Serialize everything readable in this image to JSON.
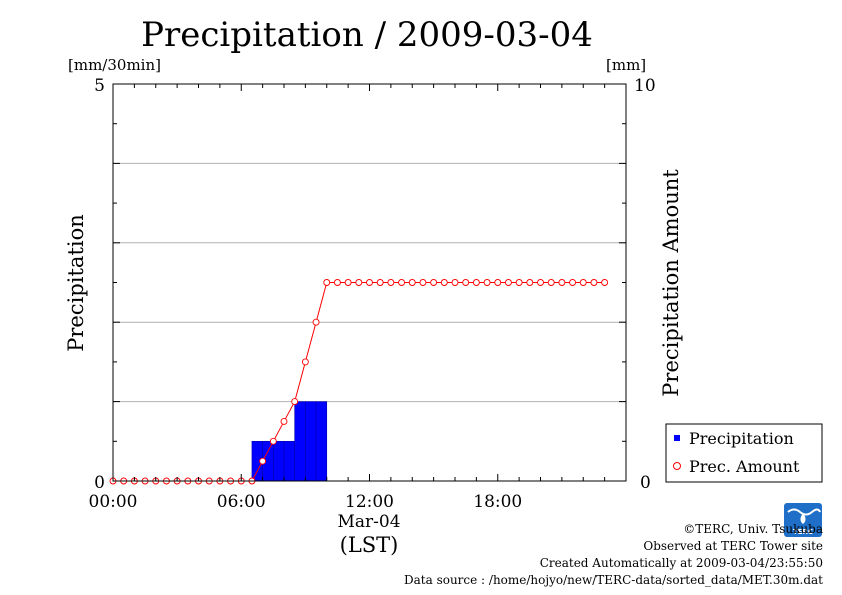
{
  "chart_data": {
    "type": "bar",
    "title": "Precipitation / 2009-03-04",
    "xlabel": "(LST)",
    "x_date_label": "Mar-04",
    "x_ticks": [
      "00:00",
      "06:00",
      "12:00",
      "18:00"
    ],
    "x_tick_hours": [
      0,
      6,
      12,
      18
    ],
    "xlim_hours": [
      0,
      24
    ],
    "bar_width_hours": 0.5,
    "y_left": {
      "label": "Precipitation",
      "unit": "[mm/30min]",
      "lim": [
        0,
        5
      ],
      "tick_labels": [
        "0",
        "5"
      ],
      "gridlines": [
        1,
        2,
        3,
        4
      ]
    },
    "y_right": {
      "label": "Precipitation Amount",
      "unit": "[mm]",
      "lim": [
        0,
        10
      ],
      "tick_labels": [
        "0",
        "10"
      ]
    },
    "series": [
      {
        "name": "Precipitation",
        "kind": "bar",
        "axis": "left",
        "color": "#0000ff",
        "x_hours": [
          6.5,
          7.0,
          7.5,
          8.0,
          8.5,
          9.0,
          9.5
        ],
        "values": [
          0.5,
          0.5,
          0.5,
          0.5,
          1.0,
          1.0,
          1.0
        ]
      },
      {
        "name": "Prec. Amount",
        "kind": "line",
        "axis": "right",
        "color": "#ff0000",
        "x_hours": [
          0.0,
          0.5,
          1.0,
          1.5,
          2.0,
          2.5,
          3.0,
          3.5,
          4.0,
          4.5,
          5.0,
          5.5,
          6.0,
          6.5,
          7.0,
          7.5,
          8.0,
          8.5,
          9.0,
          9.5,
          10.0,
          10.5,
          11.0,
          11.5,
          12.0,
          12.5,
          13.0,
          13.5,
          14.0,
          14.5,
          15.0,
          15.5,
          16.0,
          16.5,
          17.0,
          17.5,
          18.0,
          18.5,
          19.0,
          19.5,
          20.0,
          20.5,
          21.0,
          21.5,
          22.0,
          22.5,
          23.0
        ],
        "values": [
          0,
          0,
          0,
          0,
          0,
          0,
          0,
          0,
          0,
          0,
          0,
          0,
          0,
          0,
          0.5,
          1.0,
          1.5,
          2.0,
          3.0,
          4.0,
          5.0,
          5.0,
          5.0,
          5.0,
          5.0,
          5.0,
          5.0,
          5.0,
          5.0,
          5.0,
          5.0,
          5.0,
          5.0,
          5.0,
          5.0,
          5.0,
          5.0,
          5.0,
          5.0,
          5.0,
          5.0,
          5.0,
          5.0,
          5.0,
          5.0,
          5.0,
          5.0
        ]
      }
    ],
    "legend": {
      "position": "bottom-right",
      "items": [
        "Precipitation",
        "Prec. Amount"
      ]
    },
    "grid": "horizontal"
  },
  "credits": {
    "copyright": "©TERC, Univ. Tsukuba",
    "observed": "Observed at TERC Tower site",
    "created": "Created Automatically at 2009-03-04/23:55:50",
    "source": "Data source : /home/hojyo/new/TERC-data/sorted_data/MET.30m.dat"
  },
  "logo": {
    "text": "TERC",
    "color": "#1f6fc8"
  }
}
